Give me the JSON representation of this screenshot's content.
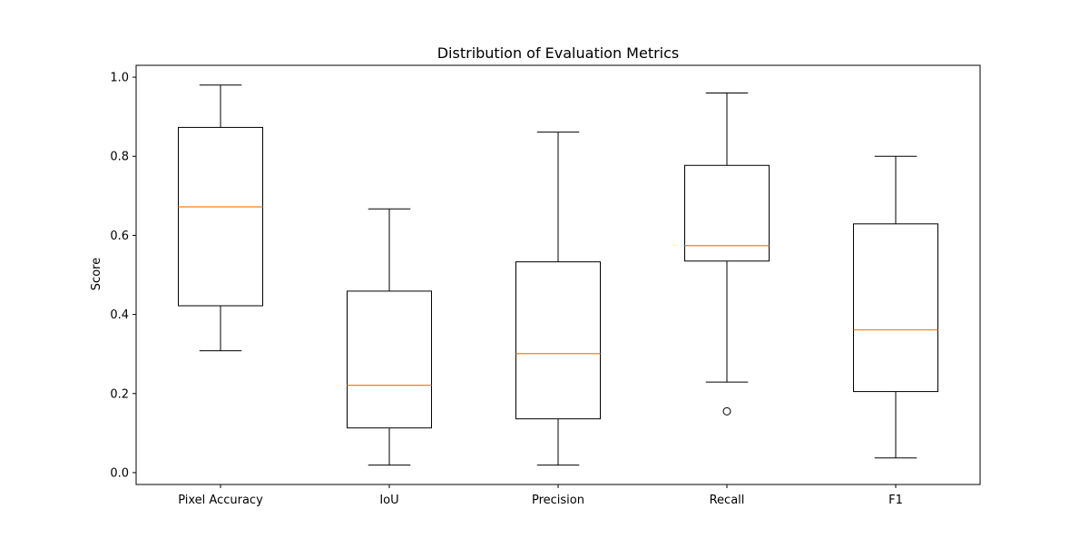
{
  "chart_data": {
    "type": "box",
    "title": "Distribution of Evaluation Metrics",
    "xlabel": "",
    "ylabel": "Score",
    "ylim": [
      -0.03,
      1.03
    ],
    "yticks": [
      0.0,
      0.2,
      0.4,
      0.6,
      0.8,
      1.0
    ],
    "ytick_labels": [
      "0.0",
      "0.2",
      "0.4",
      "0.6",
      "0.8",
      "1.0"
    ],
    "grid": false,
    "categories": [
      "Pixel Accuracy",
      "IoU",
      "Precision",
      "Recall",
      "F1"
    ],
    "boxes": [
      {
        "category": "Pixel Accuracy",
        "whisker_low": 0.308,
        "q1": 0.422,
        "median": 0.672,
        "q3": 0.873,
        "whisker_high": 0.98,
        "outliers": []
      },
      {
        "category": "IoU",
        "whisker_low": 0.019,
        "q1": 0.113,
        "median": 0.221,
        "q3": 0.459,
        "whisker_high": 0.667,
        "outliers": []
      },
      {
        "category": "Precision",
        "whisker_low": 0.019,
        "q1": 0.136,
        "median": 0.301,
        "q3": 0.533,
        "whisker_high": 0.861,
        "outliers": []
      },
      {
        "category": "Recall",
        "whisker_low": 0.229,
        "q1": 0.535,
        "median": 0.574,
        "q3": 0.777,
        "whisker_high": 0.96,
        "outliers": [
          0.155
        ]
      },
      {
        "category": "F1",
        "whisker_low": 0.037,
        "q1": 0.205,
        "median": 0.361,
        "q3": 0.629,
        "whisker_high": 0.8,
        "outliers": []
      }
    ],
    "colors": {
      "box": "#000000",
      "median": "#ff7f0e",
      "outlier": "#000000"
    }
  }
}
